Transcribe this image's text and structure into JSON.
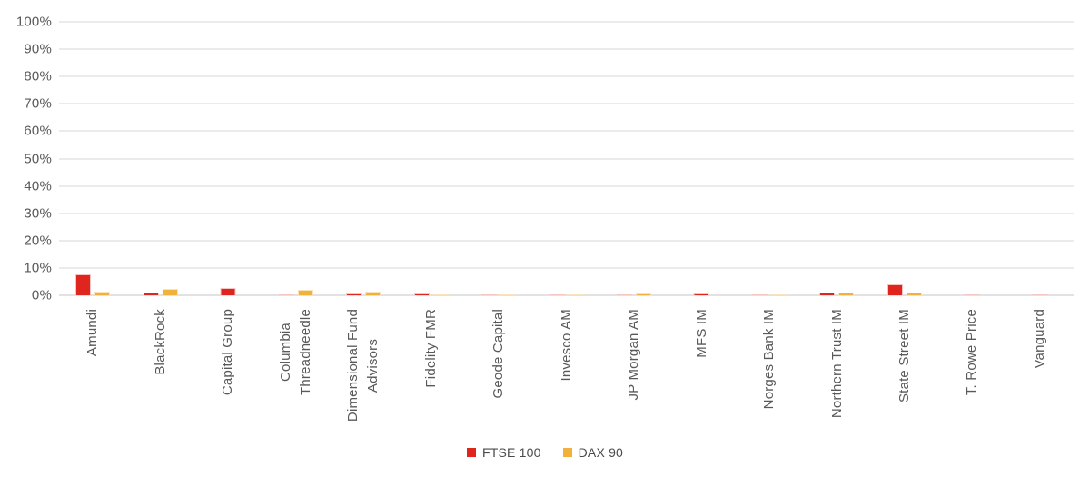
{
  "chart_data": {
    "type": "bar",
    "title": "",
    "xlabel": "",
    "ylabel": "",
    "ylim": [
      0,
      100
    ],
    "grid": true,
    "legend_position": "bottom",
    "y_ticks": [
      "100%",
      "90%",
      "80%",
      "70%",
      "60%",
      "50%",
      "40%",
      "30%",
      "20%",
      "10%",
      "0%"
    ],
    "categories": [
      "Amundi",
      "BlackRock",
      "Capital Group",
      "Columbia\nThreadneedle",
      "Dimensional Fund\nAdvisors",
      "Fidelity FMR",
      "Geode Capital",
      "Invesco AM",
      "JP Morgan AM",
      "MFS IM",
      "Norges Bank IM",
      "Northern Trust IM",
      "State Street IM",
      "T. Rowe Price",
      "Vanguard"
    ],
    "series": [
      {
        "name": "FTSE 100",
        "color": "#e0251f",
        "light_color": "#f5c5c2",
        "values": [
          7.6,
          1.0,
          2.5,
          0.3,
          0.6,
          0.8,
          0.2,
          0.3,
          0.3,
          0.7,
          0.2,
          1.0,
          4.0,
          0.5,
          0.2
        ]
      },
      {
        "name": "DAX 90",
        "color": "#f1b23c",
        "light_color": "#fae3ba",
        "values": [
          1.4,
          2.2,
          0,
          2.0,
          1.2,
          0.4,
          0.2,
          0.2,
          0.8,
          0,
          0.2,
          1.0,
          1.0,
          0,
          0
        ]
      }
    ]
  },
  "colors": {
    "gridline": "#ebebeb",
    "baseline": "#e2e2e2",
    "axis_text": "#595959",
    "legend_text": "#4a4a4a",
    "background": "#ffffff"
  }
}
